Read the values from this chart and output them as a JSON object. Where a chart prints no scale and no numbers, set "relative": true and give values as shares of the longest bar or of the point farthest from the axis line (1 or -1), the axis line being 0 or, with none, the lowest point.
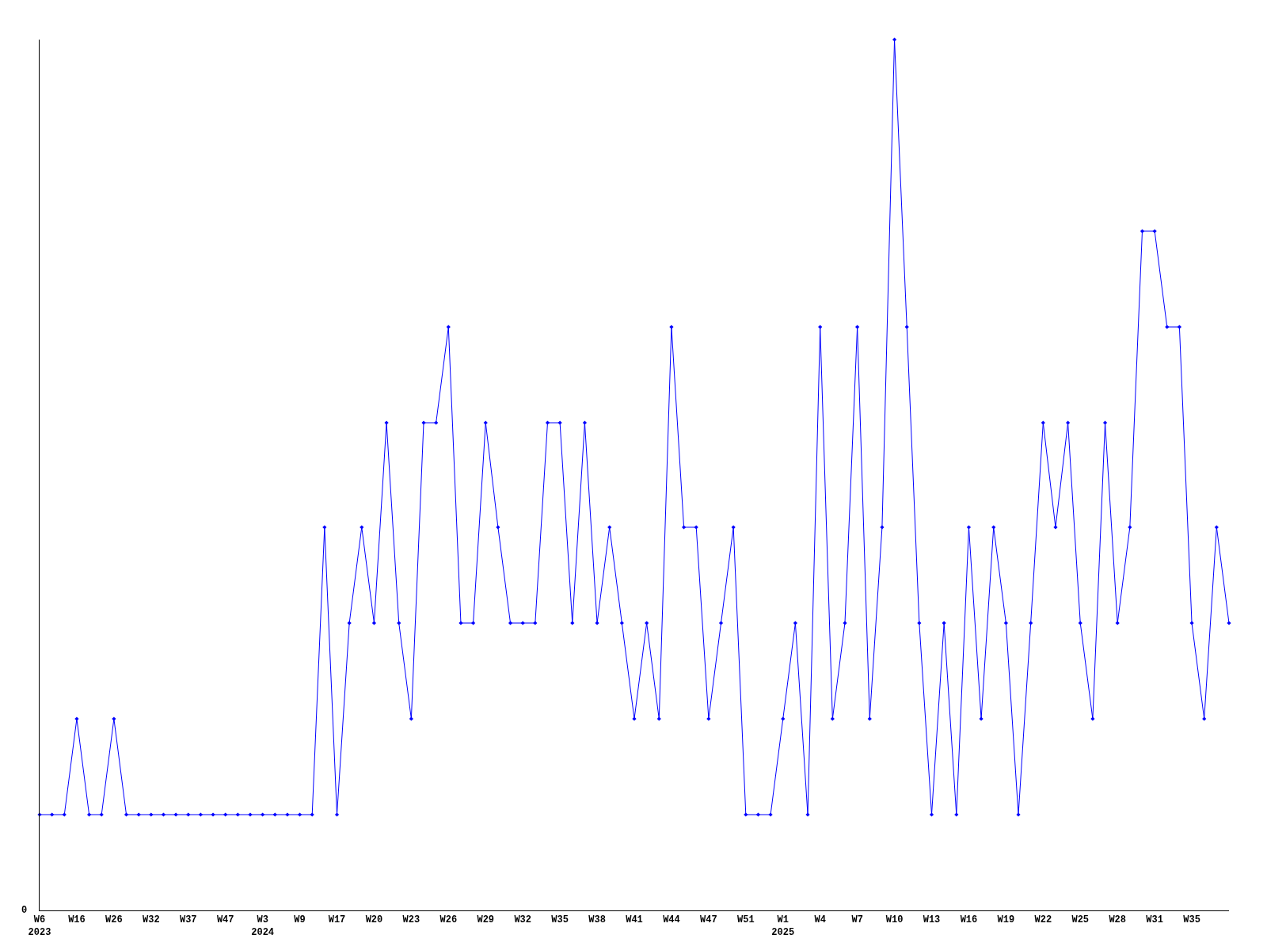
{
  "chart_data": {
    "type": "line",
    "relative": true,
    "color": "#0000ff",
    "marker": "diamond",
    "line_style": "solid",
    "annotations": [
      "0"
    ],
    "categories": [
      "W6\n2023",
      null,
      null,
      "W16",
      null,
      null,
      "W26",
      null,
      null,
      "W32",
      null,
      null,
      "W37",
      null,
      null,
      "W47",
      null,
      null,
      "W3\n2024",
      null,
      null,
      "W9",
      null,
      null,
      "W17",
      null,
      null,
      "W20",
      null,
      null,
      "W23",
      null,
      null,
      "W26",
      null,
      null,
      "W29",
      null,
      null,
      "W32",
      null,
      null,
      "W35",
      null,
      null,
      "W38",
      null,
      null,
      "W41",
      null,
      null,
      "W44",
      null,
      null,
      "W47",
      null,
      null,
      "W51",
      null,
      null,
      "W1\n2025",
      null,
      null,
      "W4",
      null,
      null,
      "W7",
      null,
      null,
      "W10",
      null,
      null,
      "W13",
      null,
      null,
      "W16",
      null,
      null,
      "W19",
      null,
      null,
      "W22",
      null,
      null,
      "W25",
      null,
      null,
      "W28",
      null,
      null,
      "W31",
      null,
      null,
      "W35",
      null,
      null,
      null
    ],
    "values": [
      0.11,
      0.11,
      0.11,
      0.22,
      0.11,
      0.11,
      0.22,
      0.11,
      0.11,
      0.11,
      0.11,
      0.11,
      0.11,
      0.11,
      0.11,
      0.11,
      0.11,
      0.11,
      0.11,
      0.11,
      0.11,
      0.11,
      0.11,
      0.44,
      0.11,
      0.33,
      0.44,
      0.33,
      0.56,
      0.33,
      0.22,
      0.56,
      0.56,
      0.67,
      0.33,
      0.33,
      0.56,
      0.44,
      0.33,
      0.33,
      0.33,
      0.56,
      0.56,
      0.33,
      0.56,
      0.33,
      0.44,
      0.33,
      0.22,
      0.33,
      0.22,
      0.67,
      0.44,
      0.44,
      0.22,
      0.33,
      0.44,
      0.11,
      0.11,
      0.11,
      0.22,
      0.33,
      0.11,
      0.67,
      0.22,
      0.33,
      0.67,
      0.22,
      0.44,
      1,
      0.67,
      0.33,
      0.11,
      0.33,
      0.11,
      0.44,
      0.22,
      0.44,
      0.33,
      0.11,
      0.33,
      0.56,
      0.44,
      0.56,
      0.33,
      0.22,
      0.56,
      0.33,
      0.44,
      0.78,
      0.78,
      0.67,
      0.67,
      0.33,
      0.22,
      0.44,
      0.33
    ]
  }
}
